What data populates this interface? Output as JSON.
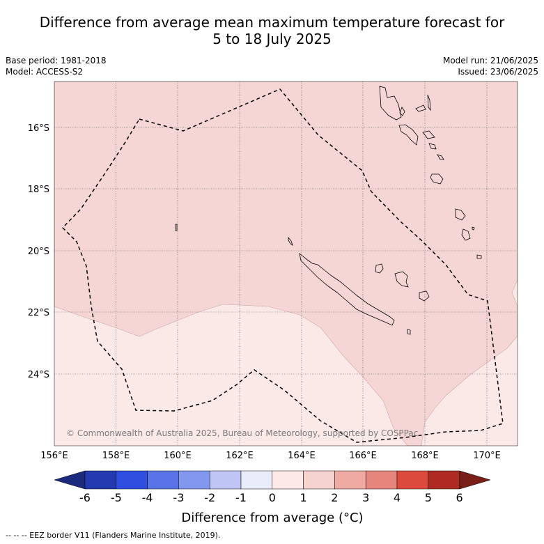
{
  "title": {
    "line1": "Difference from average mean maximum temperature forecast for",
    "line2": "5 to 18 July 2025"
  },
  "meta": {
    "base_period": "Base period: 1981-2018",
    "model": "Model: ACCESS-S2",
    "model_run": "Model run: 21/06/2025",
    "issued": "Issued: 23/06/2025"
  },
  "map": {
    "lat_labels": [
      "16°S",
      "18°S",
      "20°S",
      "22°S",
      "24°S"
    ],
    "lon_labels": [
      "156°E",
      "158°E",
      "160°E",
      "162°E",
      "164°E",
      "166°E",
      "168°E",
      "170°E"
    ],
    "copyright": "© Commonwealth of Australia 2025, Bureau of Meteorology, supported by COSPPac",
    "fill_colors": {
      "band_0_1": "#fbe9e8",
      "band_1_2": "#f5d6d4"
    }
  },
  "colorbar": {
    "ticks": [
      "-6",
      "-5",
      "-4",
      "-3",
      "-2",
      "-1",
      "0",
      "1",
      "2",
      "3",
      "4",
      "5",
      "6"
    ],
    "colors": [
      "#243ab0",
      "#2f4fe0",
      "#5a74e8",
      "#8297ee",
      "#bfc6f5",
      "#e8ecfb",
      "#fde9e7",
      "#f6d3cf",
      "#efaaa4",
      "#e6857b",
      "#dc4a3d",
      "#ae2a23"
    ],
    "under_color": "#1b2a7d",
    "over_color": "#7a1e18",
    "label": "Difference from average (",
    "label_unit": "°C)"
  },
  "footer": {
    "eez_note": "--  --  -- EEZ border V11 (Flanders Marine Institute, 2019)."
  }
}
